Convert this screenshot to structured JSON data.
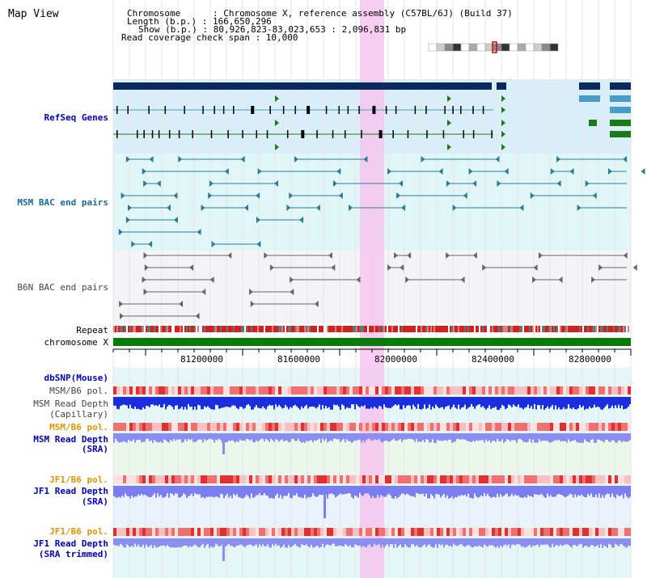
{
  "header": {
    "title": "Map View",
    "info_lines": [
      "Chromosome      : Chromosome X, reference assembly (C57BL/6J) (Build 37)",
      "Length (b.p.) : 166,650,296",
      "Show (b.p.) : 80,926,823-83,023,653 : 2,096,831 bp",
      "Read coverage check span : 10,000"
    ]
  },
  "tracks": {
    "refseq": "RefSeq Genes",
    "msm_bac": "MSM BAC end pairs",
    "b6n_bac": "B6N BAC end pairs",
    "repeat": "Repeat",
    "chromosome": "chromosome X",
    "dbsnp": "dbSNP(Mouse)",
    "msm_b6_pol_1": "MSM/B6 pol.",
    "msm_read_depth_cap": [
      "MSM Read Depth",
      "(Capillary)"
    ],
    "msm_b6_pol_2": "MSM/B6 pol.",
    "msm_read_depth_sra": [
      "MSM Read Depth",
      "(SRA)"
    ],
    "jf1_b6_pol_1": "JF1/B6 pol.",
    "jf1_read_depth_sra": [
      "JF1 Read Depth",
      "(SRA)"
    ],
    "jf1_b6_pol_2": "JF1/B6 pol.",
    "jf1_read_depth_trim": [
      "JF1 Read Depth",
      "(SRA trimmed)"
    ]
  },
  "axis": {
    "ticks": [
      "81200000",
      "81600000",
      "82000000",
      "82400000",
      "82800000"
    ]
  },
  "colors": {
    "refseq_navy": "#0a2a5e",
    "refseq_light": "#4a9cc8",
    "refseq_green": "#1a7a1a",
    "msm_bac": "#2a7a9c",
    "b6n_bac": "#666666",
    "highlight": "#f6c6ee",
    "chromosome_bar": "#0a7a0a",
    "link": "#0000cc",
    "orange": "#e69500"
  }
}
